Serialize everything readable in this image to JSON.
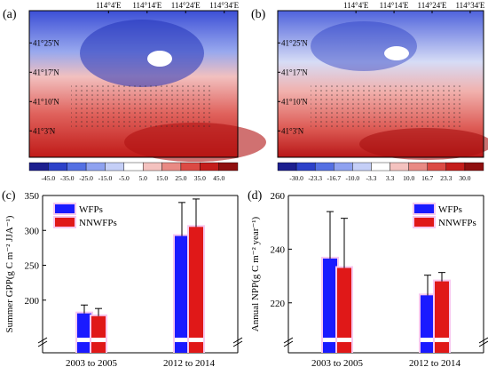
{
  "panels": {
    "a": {
      "label": "(a)",
      "x_ticks": [
        "114°4'E",
        "114°14'E",
        "114°24'E",
        "114°34'E"
      ],
      "y_ticks": [
        "41°25'N",
        "41°17'N",
        "41°10'N",
        "41°3'N"
      ],
      "colorbar": [
        "-45.0",
        "-35.0",
        "-25.0",
        "-15.0",
        "-5.0",
        "5.0",
        "15.0",
        "25.0",
        "35.0",
        "45.0"
      ]
    },
    "b": {
      "label": "(b)",
      "x_ticks": [
        "114°4'E",
        "114°14'E",
        "114°24'E",
        "114°34'E"
      ],
      "y_ticks": [
        "41°25'N",
        "41°17'N",
        "41°10'N",
        "41°3'N"
      ],
      "colorbar": [
        "-30.0",
        "-23.3",
        "-16.7",
        "-10.0",
        "-3.3",
        "3.3",
        "10.0",
        "16.7",
        "23.3",
        "30.0"
      ]
    }
  },
  "colorbar_colors": [
    "#1c1f8f",
    "#2c41c9",
    "#5470e3",
    "#8fa2f0",
    "#c5cff7",
    "#ffffff",
    "#f4c2bf",
    "#e98a84",
    "#dc4a44",
    "#c41d1b",
    "#8f0f0f"
  ],
  "colors": {
    "wfp": "#1a1aff",
    "nnwfp": "#e01818",
    "halo": "#f7c8f0"
  },
  "chart_data": [
    {
      "panel": "(c)",
      "type": "bar",
      "ylabel": "Summer GPP(g C m⁻² JJA⁻¹)",
      "ylim": [
        150,
        350
      ],
      "yticks": [
        200,
        250,
        300,
        350
      ],
      "axis_break": true,
      "categories": [
        "2003 to 2005",
        "2012 to 2014"
      ],
      "series": [
        {
          "name": "WFPs",
          "values": [
            181,
            292
          ],
          "errors": [
            12,
            48
          ]
        },
        {
          "name": "NNWFPs",
          "values": [
            177,
            305
          ],
          "errors": [
            11,
            40
          ]
        }
      ],
      "legend": "top-left"
    },
    {
      "panel": "(d)",
      "type": "bar",
      "ylabel": "Annual NPP(g C m⁻² year⁻¹)",
      "ylim": [
        208,
        260
      ],
      "yticks": [
        220,
        240,
        260
      ],
      "axis_break": true,
      "categories": [
        "2003 to 2005",
        "2012 to 2014"
      ],
      "series": [
        {
          "name": "WFPs",
          "values": [
            236.5,
            222.8
          ],
          "errors": [
            17.5,
            7.5
          ]
        },
        {
          "name": "NNWFPs",
          "values": [
            233.0,
            228.0
          ],
          "errors": [
            18.5,
            3.3
          ]
        }
      ],
      "legend": "top-right"
    }
  ]
}
